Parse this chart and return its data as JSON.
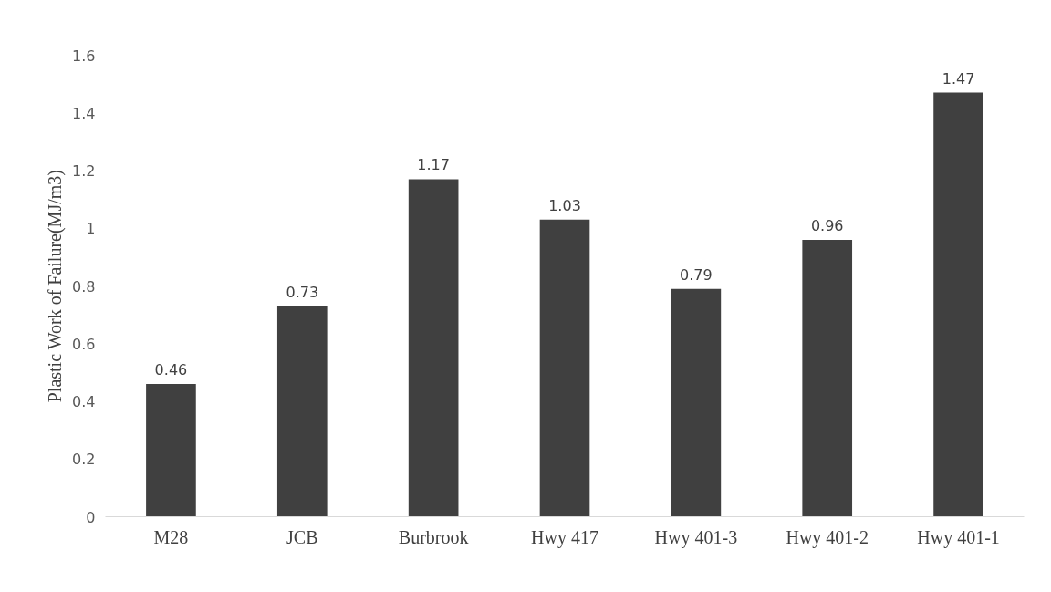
{
  "chart_data": {
    "type": "bar",
    "ylabel": "Plastic Work of Failure(MJ/m3)",
    "categories": [
      "M28",
      "JCB",
      "Burbrook",
      "Hwy 417",
      "Hwy 401-3",
      "Hwy 401-2",
      "Hwy 401-1"
    ],
    "values": [
      0.46,
      0.73,
      1.17,
      1.03,
      0.79,
      0.96,
      1.47
    ],
    "color": "#404040",
    "ylim": [
      0,
      1.6
    ],
    "yticks": [
      0,
      0.2,
      0.4,
      0.6,
      0.8,
      1,
      1.2,
      1.4,
      1.6
    ],
    "data_labels": true,
    "grid": false
  }
}
